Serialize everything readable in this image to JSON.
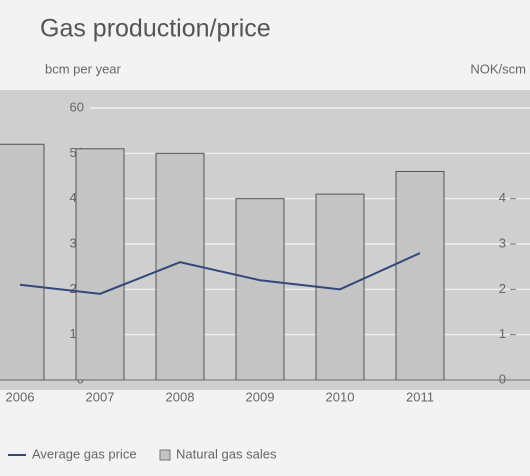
{
  "chart_data": {
    "type": "bar",
    "title": "Gas production/price",
    "y_label": "bcm per year",
    "y2_label": "NOK/scm",
    "categories": [
      "2006",
      "2007",
      "2008",
      "2009",
      "2010",
      "2011"
    ],
    "series": [
      {
        "name": "Average gas price",
        "color": "#33477a",
        "type": "line",
        "axis": "y2",
        "values": [
          2.1,
          1.9,
          2.6,
          2.2,
          2.0,
          2.8
        ]
      },
      {
        "name": "Natural gas sales",
        "color": "#c4c4c4",
        "type": "bar",
        "values": [
          52,
          51,
          50,
          40,
          41,
          46
        ]
      }
    ],
    "ylim": [
      0,
      60
    ],
    "yticks": [
      0,
      10,
      20,
      30,
      40,
      50,
      60
    ],
    "y2lim": [
      0,
      6
    ],
    "y2ticks": [
      0,
      1,
      2,
      3,
      4
    ],
    "grid": true
  }
}
